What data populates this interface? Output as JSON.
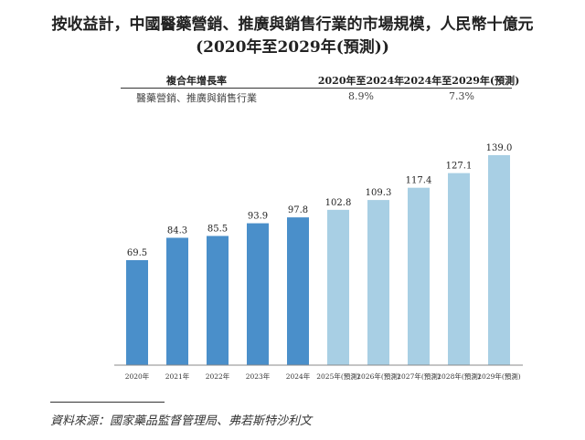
{
  "chart_data": {
    "type": "bar",
    "title": "按收益計，中國醫藥營銷、推廣與銷售行業的市場規模，人民幣十億元",
    "subtitle": "(2020年至2029年(預測))",
    "categories": [
      "2020年",
      "2021年",
      "2022年",
      "2023年",
      "2024年",
      "2025年(預測)",
      "2026年(預測)",
      "2027年(預測)",
      "2028年(預測)",
      "2029年(預測)"
    ],
    "values": [
      69.5,
      84.3,
      85.5,
      93.9,
      97.8,
      102.8,
      109.3,
      117.4,
      127.1,
      139.0
    ],
    "value_labels": [
      "69.5",
      "84.3",
      "85.5",
      "93.9",
      "97.8",
      "102.8",
      "109.3",
      "117.4",
      "127.1",
      "139.0"
    ],
    "forecast": [
      false,
      false,
      false,
      false,
      false,
      true,
      true,
      true,
      true,
      true
    ],
    "colors": {
      "actual": "#4a8fca",
      "forecast": "#a8cfe4"
    },
    "xlabel": "",
    "ylabel": "",
    "ylim": [
      0,
      145
    ],
    "grid": false
  },
  "cagr_table": {
    "headers": [
      "複合年增長率",
      "2020年至2024年",
      "2024年至2029年(預測)"
    ],
    "row": [
      "醫藥營銷、推廣與銷售行業",
      "8.9%",
      "7.3%"
    ]
  },
  "source": "資料來源：國家藥品監督管理局、弗若斯特沙利文"
}
